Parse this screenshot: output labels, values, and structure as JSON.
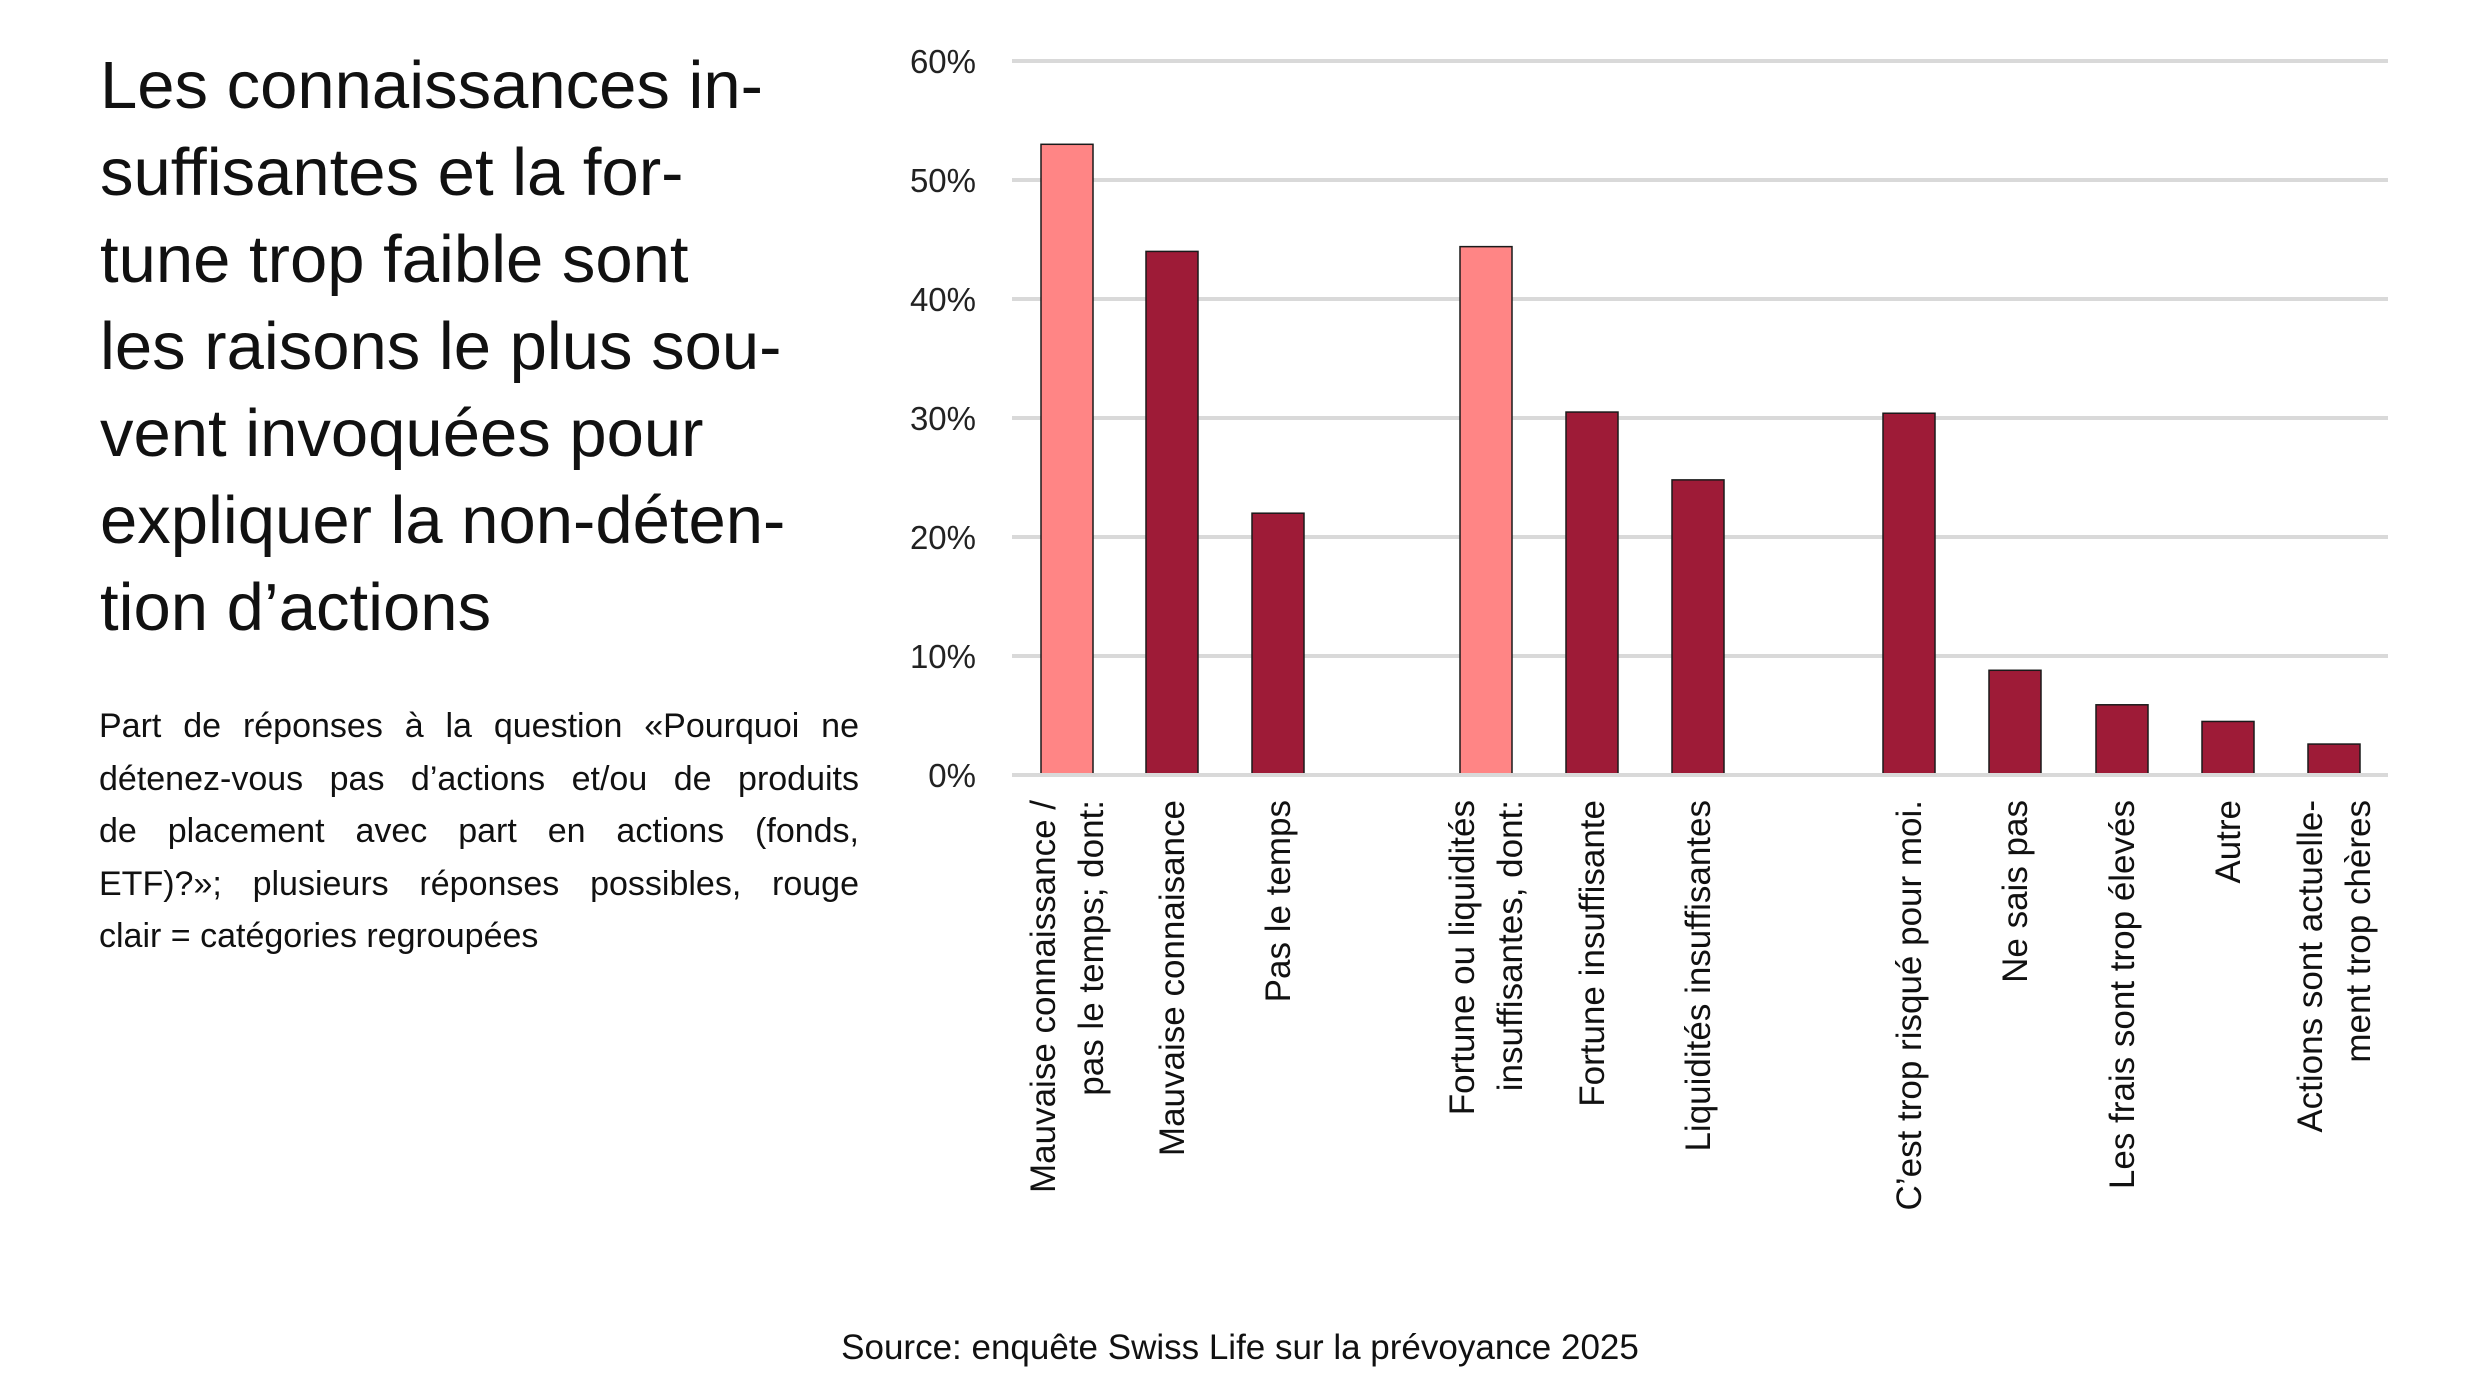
{
  "title_lines": [
    "Les connaissances in-",
    "suffisantes et la for-",
    "tune trop faible sont",
    "les raisons le plus sou-",
    "vent invoquées pour",
    "expliquer la non-déten-",
    "tion d’actions"
  ],
  "subtitle_lines": [
    "Part de réponses à la question «Pourquoi ne",
    "détenez-vous pas d’actions et/ou de produits",
    "de placement avec part en actions (fonds,",
    "ETF)?»; plusieurs réponses possibles, rouge",
    "clair = catégories regroupées"
  ],
  "source": "Source: enquête Swiss Life sur la prévoyance 2025",
  "colors": {
    "dark_red": "#9e1b37",
    "light_red": "#ff8585",
    "grid": "#d9d9d9"
  },
  "chart_data": {
    "type": "bar",
    "ylim": [
      0,
      60
    ],
    "y_ticks": [
      0,
      10,
      20,
      30,
      40,
      50,
      60
    ],
    "y_tick_labels": [
      "0%",
      "10%",
      "20%",
      "30%",
      "40%",
      "50%",
      "60%"
    ],
    "grid": true,
    "legend": "none",
    "categories": [
      "Mauvaise connaissance / pas le temps; dont:",
      "Mauvaise connaisance",
      "Pas le temps",
      "Fortune ou liquidités insuffisantes, dont:",
      "Fortune insuffisante",
      "Liquidités insuffisantes",
      "C’est trop risqué pour moi.",
      "Ne sais pas",
      "Les frais sont trop élevés",
      "Autre",
      "Actions sont actuelle-ment trop chères"
    ],
    "category_label_lines": [
      [
        "Mauvaise connaissance /",
        "pas le temps; dont:"
      ],
      [
        "Mauvaise connaisance"
      ],
      [
        "Pas le temps"
      ],
      [
        "Fortune ou liquidités",
        "insuffisantes, dont:"
      ],
      [
        "Fortune insuffisante"
      ],
      [
        "Liquidités insuffisantes"
      ],
      [
        "C’est trop risqué pour moi."
      ],
      [
        "Ne sais pas"
      ],
      [
        "Les frais sont trop élevés"
      ],
      [
        "Autre"
      ],
      [
        "Actions sont actuelle-",
        "ment trop chères"
      ]
    ],
    "values": [
      53,
      44,
      22,
      44.4,
      30.5,
      24.8,
      30.4,
      8.8,
      5.9,
      4.5,
      2.6
    ],
    "grouped": [
      true,
      false,
      false,
      true,
      false,
      false,
      false,
      false,
      false,
      false,
      false
    ]
  }
}
